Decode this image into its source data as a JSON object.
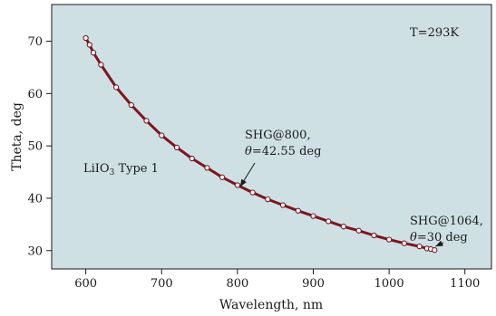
{
  "chart_data": {
    "type": "line",
    "xlabel": "Wavelength, nm",
    "ylabel": "Theta, deg",
    "xlim": [
      555,
      1135
    ],
    "ylim": [
      26.5,
      77
    ],
    "xticks": [
      600,
      700,
      800,
      900,
      1000,
      1100
    ],
    "yticks": [
      30,
      40,
      50,
      60,
      70
    ],
    "grid": false,
    "colors": {
      "plot_background": "#cfe0e4",
      "curve": "#7b1620",
      "marker_fill": "#ffffff",
      "axis": "#1a1a1a"
    },
    "series": [
      {
        "x": [
          600,
          605,
          610,
          620,
          640,
          660,
          680,
          700,
          720,
          740,
          760,
          780,
          800,
          820,
          840,
          860,
          880,
          900,
          920,
          940,
          960,
          980,
          1000,
          1020,
          1040,
          1050,
          1055,
          1060
        ],
        "y": [
          70.6,
          69.3,
          67.8,
          65.5,
          61.2,
          57.8,
          54.8,
          52.0,
          49.7,
          47.6,
          45.8,
          44.0,
          42.5,
          41.1,
          39.8,
          38.7,
          37.6,
          36.6,
          35.6,
          34.6,
          33.8,
          32.9,
          32.1,
          31.4,
          30.8,
          30.4,
          30.3,
          30.1
        ]
      }
    ],
    "annotations": [
      {
        "id": "temp",
        "lines": [
          {
            "text": "T=293K"
          }
        ]
      },
      {
        "id": "crystal",
        "lines": [
          {
            "text": "LiIO",
            "sub": "3",
            "rest": " Type 1"
          }
        ]
      },
      {
        "id": "shg800",
        "lines": [
          {
            "text": "SHG@800,"
          },
          {
            "italic": "θ",
            "rest": "=42.55 deg"
          }
        ],
        "x": 800,
        "y": 42.55
      },
      {
        "id": "shg1064",
        "lines": [
          {
            "text": "SHG@1064,"
          },
          {
            "italic": "θ",
            "rest": "=30 deg"
          }
        ],
        "x": 1060,
        "y": 30.1
      }
    ]
  }
}
